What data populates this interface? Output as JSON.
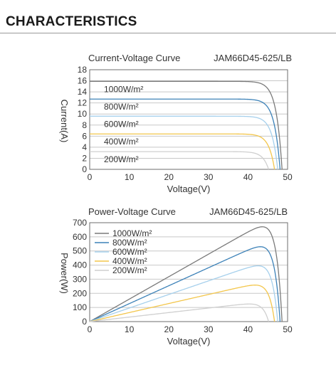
{
  "section": {
    "title": "CHARACTERISTICS"
  },
  "chart_data": [
    {
      "type": "line",
      "title": "Current-Voltage Curve",
      "model": "JAM66D45-625/LB",
      "xlabel": "Voltage(V)",
      "ylabel": "Current(A)",
      "xlim": [
        0,
        50
      ],
      "ylim": [
        0,
        18
      ],
      "xticks": [
        0,
        10,
        20,
        30,
        40,
        50
      ],
      "yticks": [
        0,
        2,
        4,
        6,
        8,
        10,
        12,
        14,
        16,
        18
      ],
      "grid": "horizontal",
      "legend": "inline-left",
      "series": [
        {
          "name": "1000W/m²",
          "color": "#7a7a7a",
          "isc": 15.9,
          "voc": 48.6
        },
        {
          "name": "800W/m²",
          "color": "#3d82b8",
          "isc": 12.7,
          "voc": 48.1
        },
        {
          "name": "600W/m²",
          "color": "#a6d0ec",
          "isc": 9.6,
          "voc": 47.5
        },
        {
          "name": "400W/m²",
          "color": "#f3c64b",
          "isc": 6.4,
          "voc": 46.7
        },
        {
          "name": "200W/m²",
          "color": "#cfcfcf",
          "isc": 3.2,
          "voc": 45.2
        }
      ]
    },
    {
      "type": "line",
      "title": "Power-Voltage Curve",
      "model": "JAM66D45-625/LB",
      "xlabel": "Voltage(V)",
      "ylabel": "Power(W)",
      "xlim": [
        0,
        50
      ],
      "ylim": [
        0,
        700
      ],
      "xticks": [
        0,
        10,
        20,
        30,
        40,
        50
      ],
      "yticks": [
        0,
        100,
        200,
        300,
        400,
        500,
        600,
        700
      ],
      "grid": "horizontal",
      "legend": "top-left",
      "series": [
        {
          "name": "1000W/m²",
          "color": "#7a7a7a",
          "isc": 15.9,
          "voc": 48.6
        },
        {
          "name": "800W/m²",
          "color": "#3d82b8",
          "isc": 12.7,
          "voc": 48.1
        },
        {
          "name": "600W/m²",
          "color": "#a6d0ec",
          "isc": 9.6,
          "voc": 47.5
        },
        {
          "name": "400W/m²",
          "color": "#f3c64b",
          "isc": 6.4,
          "voc": 46.7
        },
        {
          "name": "200W/m²",
          "color": "#cfcfcf",
          "isc": 3.2,
          "voc": 45.2
        }
      ]
    }
  ]
}
